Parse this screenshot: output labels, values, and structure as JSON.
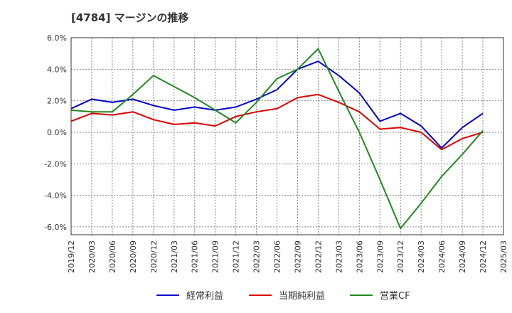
{
  "chart_data": {
    "type": "line",
    "title": "[4784]  マージンの推移",
    "x": [
      "2019/12",
      "2020/03",
      "2020/06",
      "2020/09",
      "2020/12",
      "2021/03",
      "2021/06",
      "2021/09",
      "2021/12",
      "2022/03",
      "2022/06",
      "2022/09",
      "2022/12",
      "2023/03",
      "2023/06",
      "2023/09",
      "2023/12",
      "2024/03",
      "2024/06",
      "2024/09",
      "2024/12",
      "2025/03"
    ],
    "yticks": [
      "6.0%",
      "4.0%",
      "2.0%",
      "0.0%",
      "-2.0%",
      "-4.0%",
      "-6.0%"
    ],
    "ylim": [
      -6.5,
      6.0
    ],
    "grid": true,
    "legend_position": "bottom",
    "series": [
      {
        "name": "経常利益",
        "color": "#0000cc",
        "values": [
          1.5,
          2.1,
          1.9,
          2.1,
          1.7,
          1.4,
          1.6,
          1.4,
          1.6,
          2.1,
          2.7,
          4.0,
          4.5,
          3.6,
          2.5,
          0.7,
          1.2,
          0.4,
          -1.0,
          0.3,
          1.2,
          null
        ]
      },
      {
        "name": "当期純利益",
        "color": "#dd0000",
        "values": [
          0.7,
          1.2,
          1.1,
          1.3,
          0.8,
          0.5,
          0.6,
          0.4,
          1.0,
          1.3,
          1.5,
          2.2,
          2.4,
          1.9,
          1.3,
          0.2,
          0.3,
          0.0,
          -1.1,
          -0.4,
          0.0,
          null
        ]
      },
      {
        "name": "営業CF",
        "color": "#228822",
        "values": [
          1.4,
          1.3,
          1.3,
          2.4,
          3.6,
          2.9,
          2.2,
          1.4,
          0.6,
          1.9,
          3.4,
          4.0,
          5.3,
          2.6,
          0.0,
          -3.0,
          -6.1,
          -4.5,
          -2.8,
          -1.4,
          0.1,
          null
        ]
      }
    ]
  }
}
